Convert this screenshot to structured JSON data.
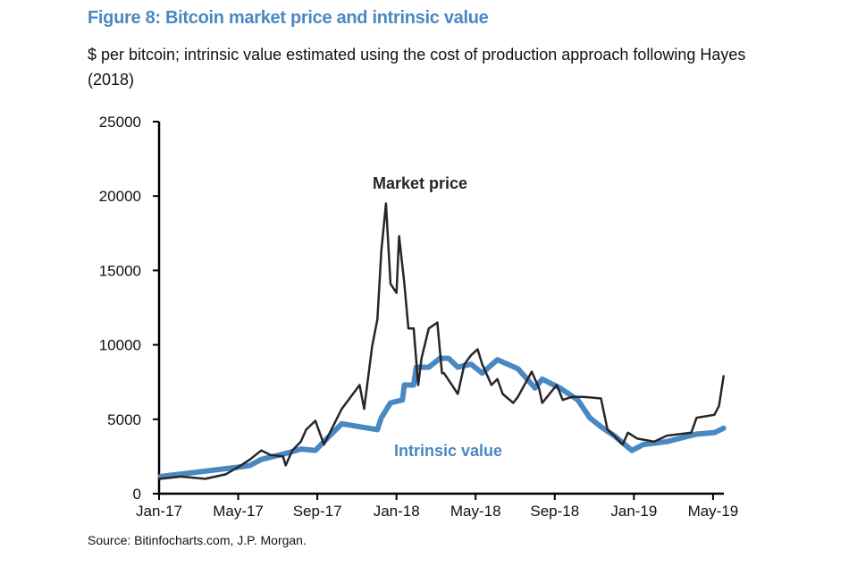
{
  "chart_data": {
    "type": "line",
    "title": "Figure 8: Bitcoin market price and intrinsic value",
    "subtitle": "$ per bitcoin; intrinsic value estimated using the cost of production approach following Hayes (2018)",
    "source": "Source: Bitinfocharts.com, J.P. Morgan.",
    "ylim": [
      0,
      25000
    ],
    "yticks": [
      "0",
      "5000",
      "10000",
      "15000",
      "20000",
      "25000"
    ],
    "xticks": [
      "Jan-17",
      "May-17",
      "Sep-17",
      "Jan-18",
      "May-18",
      "Sep-18",
      "Jan-19",
      "May-19"
    ],
    "grid": false,
    "colors": {
      "market": "#262626",
      "intrinsic": "#4a88c2",
      "title": "#4a88c2"
    },
    "series": [
      {
        "name": "Market price",
        "points": [
          [
            "2017-01-01",
            1000
          ],
          [
            "2017-01-03",
            1000
          ],
          [
            "2017-02-04",
            1150
          ],
          [
            "2017-03-11",
            1000
          ],
          [
            "2017-04-12",
            1300
          ],
          [
            "2017-05-05",
            1900
          ],
          [
            "2017-05-19",
            2300
          ],
          [
            "2017-06-06",
            2900
          ],
          [
            "2017-06-20",
            2600
          ],
          [
            "2017-07-09",
            2500
          ],
          [
            "2017-07-13",
            1900
          ],
          [
            "2017-07-23",
            2900
          ],
          [
            "2017-08-06",
            3500
          ],
          [
            "2017-08-14",
            4300
          ],
          [
            "2017-08-28",
            4900
          ],
          [
            "2017-09-11",
            3300
          ],
          [
            "2017-10-08",
            5700
          ],
          [
            "2017-11-05",
            7300
          ],
          [
            "2017-11-12",
            5700
          ],
          [
            "2017-11-24",
            9900
          ],
          [
            "2017-12-02",
            11700
          ],
          [
            "2017-12-08",
            16300
          ],
          [
            "2017-12-15",
            19500
          ],
          [
            "2017-12-22",
            14100
          ],
          [
            "2017-12-31",
            13500
          ],
          [
            "2018-01-05",
            17300
          ],
          [
            "2018-01-13",
            14100
          ],
          [
            "2018-01-19",
            11100
          ],
          [
            "2018-01-27",
            11100
          ],
          [
            "2018-02-04",
            7300
          ],
          [
            "2018-02-09",
            9100
          ],
          [
            "2018-02-20",
            11100
          ],
          [
            "2018-03-03",
            11500
          ],
          [
            "2018-03-10",
            8100
          ],
          [
            "2018-03-13",
            8100
          ],
          [
            "2018-03-31",
            6900
          ],
          [
            "2018-04-04",
            6700
          ],
          [
            "2018-04-14",
            8700
          ],
          [
            "2018-04-24",
            9300
          ],
          [
            "2018-05-04",
            9700
          ],
          [
            "2018-05-11",
            8700
          ],
          [
            "2018-05-25",
            7300
          ],
          [
            "2018-06-04",
            7700
          ],
          [
            "2018-06-12",
            6700
          ],
          [
            "2018-06-28",
            6100
          ],
          [
            "2018-07-05",
            6500
          ],
          [
            "2018-07-26",
            8200
          ],
          [
            "2018-08-07",
            7100
          ],
          [
            "2018-08-12",
            6100
          ],
          [
            "2018-09-04",
            7300
          ],
          [
            "2018-09-13",
            6300
          ],
          [
            "2018-09-27",
            6500
          ],
          [
            "2018-10-14",
            6500
          ],
          [
            "2018-11-11",
            6400
          ],
          [
            "2018-11-21",
            4300
          ],
          [
            "2018-12-01",
            3900
          ],
          [
            "2018-12-14",
            3300
          ],
          [
            "2018-12-22",
            4100
          ],
          [
            "2019-01-06",
            3700
          ],
          [
            "2019-02-02",
            3500
          ],
          [
            "2019-02-21",
            3900
          ],
          [
            "2019-03-28",
            4100
          ],
          [
            "2019-04-06",
            5100
          ],
          [
            "2019-05-03",
            5300
          ],
          [
            "2019-05-10",
            5900
          ],
          [
            "2019-05-17",
            7900
          ]
        ]
      },
      {
        "name": "Intrinsic value",
        "points": [
          [
            "2017-01-03",
            1150
          ],
          [
            "2017-05-05",
            1800
          ],
          [
            "2017-05-19",
            1900
          ],
          [
            "2017-06-06",
            2300
          ],
          [
            "2017-07-13",
            2700
          ],
          [
            "2017-08-06",
            3000
          ],
          [
            "2017-08-28",
            2900
          ],
          [
            "2017-09-11",
            3500
          ],
          [
            "2017-10-08",
            4700
          ],
          [
            "2017-12-02",
            4300
          ],
          [
            "2017-12-08",
            5100
          ],
          [
            "2017-12-22",
            6100
          ],
          [
            "2018-01-10",
            6300
          ],
          [
            "2018-01-13",
            7300
          ],
          [
            "2018-01-27",
            7300
          ],
          [
            "2018-02-01",
            8500
          ],
          [
            "2018-02-20",
            8500
          ],
          [
            "2018-03-07",
            9100
          ],
          [
            "2018-03-20",
            9100
          ],
          [
            "2018-04-04",
            8500
          ],
          [
            "2018-04-24",
            8700
          ],
          [
            "2018-05-11",
            8100
          ],
          [
            "2018-06-04",
            9000
          ],
          [
            "2018-07-05",
            8400
          ],
          [
            "2018-08-01",
            7100
          ],
          [
            "2018-08-12",
            7700
          ],
          [
            "2018-09-09",
            7100
          ],
          [
            "2018-10-06",
            6300
          ],
          [
            "2018-10-24",
            5100
          ],
          [
            "2018-11-11",
            4500
          ],
          [
            "2018-12-01",
            3900
          ],
          [
            "2018-12-28",
            2900
          ],
          [
            "2019-01-15",
            3300
          ],
          [
            "2019-02-21",
            3500
          ],
          [
            "2019-04-06",
            4000
          ],
          [
            "2019-05-03",
            4100
          ],
          [
            "2019-05-17",
            4400
          ]
        ]
      }
    ],
    "annotations": {
      "market": "Market price",
      "intrinsic": "Intrinsic value"
    }
  }
}
